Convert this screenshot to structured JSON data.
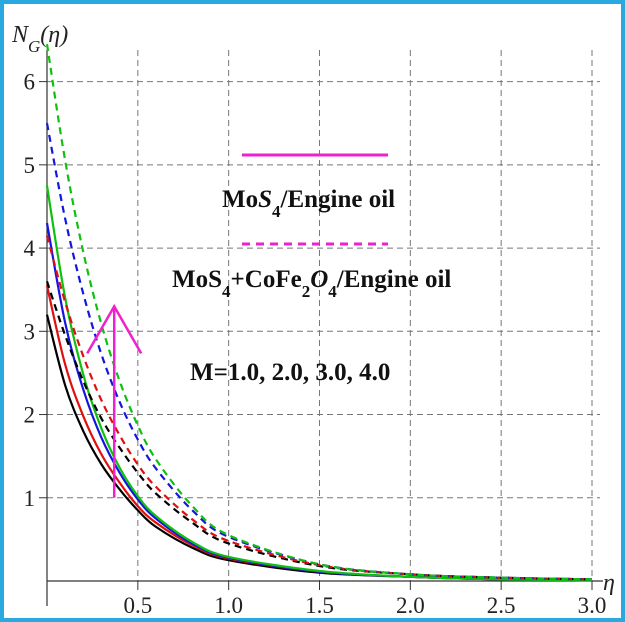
{
  "chart_data": {
    "type": "line",
    "title": "",
    "xlabel": "η",
    "ylabel_main": "N",
    "ylabel_sub": "G",
    "ylabel_tail": "(η)",
    "xlim": [
      0,
      3.0
    ],
    "ylim": [
      0,
      6.5
    ],
    "xticks": [
      0.5,
      1.0,
      1.5,
      2.0,
      2.5,
      3.0
    ],
    "xtick_labels": [
      "0.5",
      "1.0",
      "1.5",
      "2.0",
      "2.5",
      "3.0"
    ],
    "yticks": [
      1,
      2,
      3,
      4,
      5,
      6
    ],
    "ytick_labels": [
      "1",
      "2",
      "3",
      "4",
      "5",
      "6"
    ],
    "grid": true,
    "legend": {
      "solid_label_parts": [
        "Mo",
        "S",
        "4",
        "/Engine oil"
      ],
      "dashed_label_parts": [
        "Mo",
        "S",
        "4",
        "+CoFe",
        "2",
        "O",
        "4",
        "/Engine oil"
      ],
      "line_color": "#ee22cc",
      "param_text": "M=1.0, 2.0, 3.0, 4.0"
    },
    "series": [
      {
        "style": "solid",
        "color": "#000000",
        "x": [
          0,
          0.1,
          0.2,
          0.3,
          0.4,
          0.5,
          0.6,
          0.8,
          1.0,
          1.5,
          2.0,
          2.5,
          3.0
        ],
        "values": [
          3.2,
          2.35,
          1.8,
          1.4,
          1.1,
          0.85,
          0.65,
          0.4,
          0.25,
          0.1,
          0.05,
          0.02,
          0.01
        ]
      },
      {
        "style": "solid",
        "color": "#e01010",
        "x": [
          0,
          0.1,
          0.2,
          0.3,
          0.4,
          0.5,
          0.6,
          0.8,
          1.0,
          1.5,
          2.0,
          2.5,
          3.0
        ],
        "values": [
          3.55,
          2.6,
          1.98,
          1.52,
          1.18,
          0.9,
          0.7,
          0.43,
          0.27,
          0.11,
          0.05,
          0.02,
          0.01
        ]
      },
      {
        "style": "solid",
        "color": "#1515e0",
        "x": [
          0,
          0.1,
          0.2,
          0.3,
          0.4,
          0.5,
          0.6,
          0.8,
          1.0,
          1.5,
          2.0,
          2.5,
          3.0
        ],
        "values": [
          4.3,
          3.1,
          2.3,
          1.72,
          1.3,
          0.98,
          0.75,
          0.45,
          0.28,
          0.11,
          0.05,
          0.02,
          0.01
        ]
      },
      {
        "style": "solid",
        "color": "#10c010",
        "x": [
          0,
          0.1,
          0.2,
          0.3,
          0.4,
          0.5,
          0.6,
          0.8,
          1.0,
          1.5,
          2.0,
          2.5,
          3.0
        ],
        "values": [
          4.75,
          3.4,
          2.48,
          1.83,
          1.36,
          1.02,
          0.78,
          0.47,
          0.29,
          0.12,
          0.05,
          0.02,
          0.01
        ]
      },
      {
        "style": "dashed",
        "color": "#000000",
        "x": [
          0,
          0.1,
          0.2,
          0.3,
          0.4,
          0.5,
          0.6,
          0.8,
          1.0,
          1.5,
          2.0,
          2.5,
          3.0
        ],
        "values": [
          3.6,
          2.95,
          2.4,
          1.95,
          1.6,
          1.3,
          1.05,
          0.7,
          0.45,
          0.18,
          0.08,
          0.04,
          0.02
        ]
      },
      {
        "style": "dashed",
        "color": "#e01010",
        "x": [
          0,
          0.1,
          0.2,
          0.3,
          0.4,
          0.5,
          0.6,
          0.8,
          1.0,
          1.5,
          2.0,
          2.5,
          3.0
        ],
        "values": [
          4.15,
          3.35,
          2.7,
          2.17,
          1.75,
          1.4,
          1.13,
          0.74,
          0.48,
          0.19,
          0.08,
          0.04,
          0.02
        ]
      },
      {
        "style": "dashed",
        "color": "#1515e0",
        "x": [
          0,
          0.1,
          0.2,
          0.3,
          0.4,
          0.5,
          0.6,
          0.8,
          1.0,
          1.5,
          2.0,
          2.5,
          3.0
        ],
        "values": [
          5.5,
          4.35,
          3.45,
          2.72,
          2.15,
          1.7,
          1.35,
          0.85,
          0.53,
          0.2,
          0.08,
          0.04,
          0.02
        ]
      },
      {
        "style": "dashed",
        "color": "#10c010",
        "x": [
          0,
          0.1,
          0.2,
          0.3,
          0.4,
          0.5,
          0.6,
          0.8,
          1.0,
          1.5,
          2.0,
          2.5,
          3.0
        ],
        "values": [
          6.45,
          5.05,
          3.95,
          3.08,
          2.4,
          1.87,
          1.46,
          0.9,
          0.55,
          0.2,
          0.08,
          0.04,
          0.02
        ]
      }
    ],
    "arrow": {
      "color": "#ee22cc",
      "x": 0.37,
      "y_from": 1.0,
      "y_to": 3.3
    }
  }
}
